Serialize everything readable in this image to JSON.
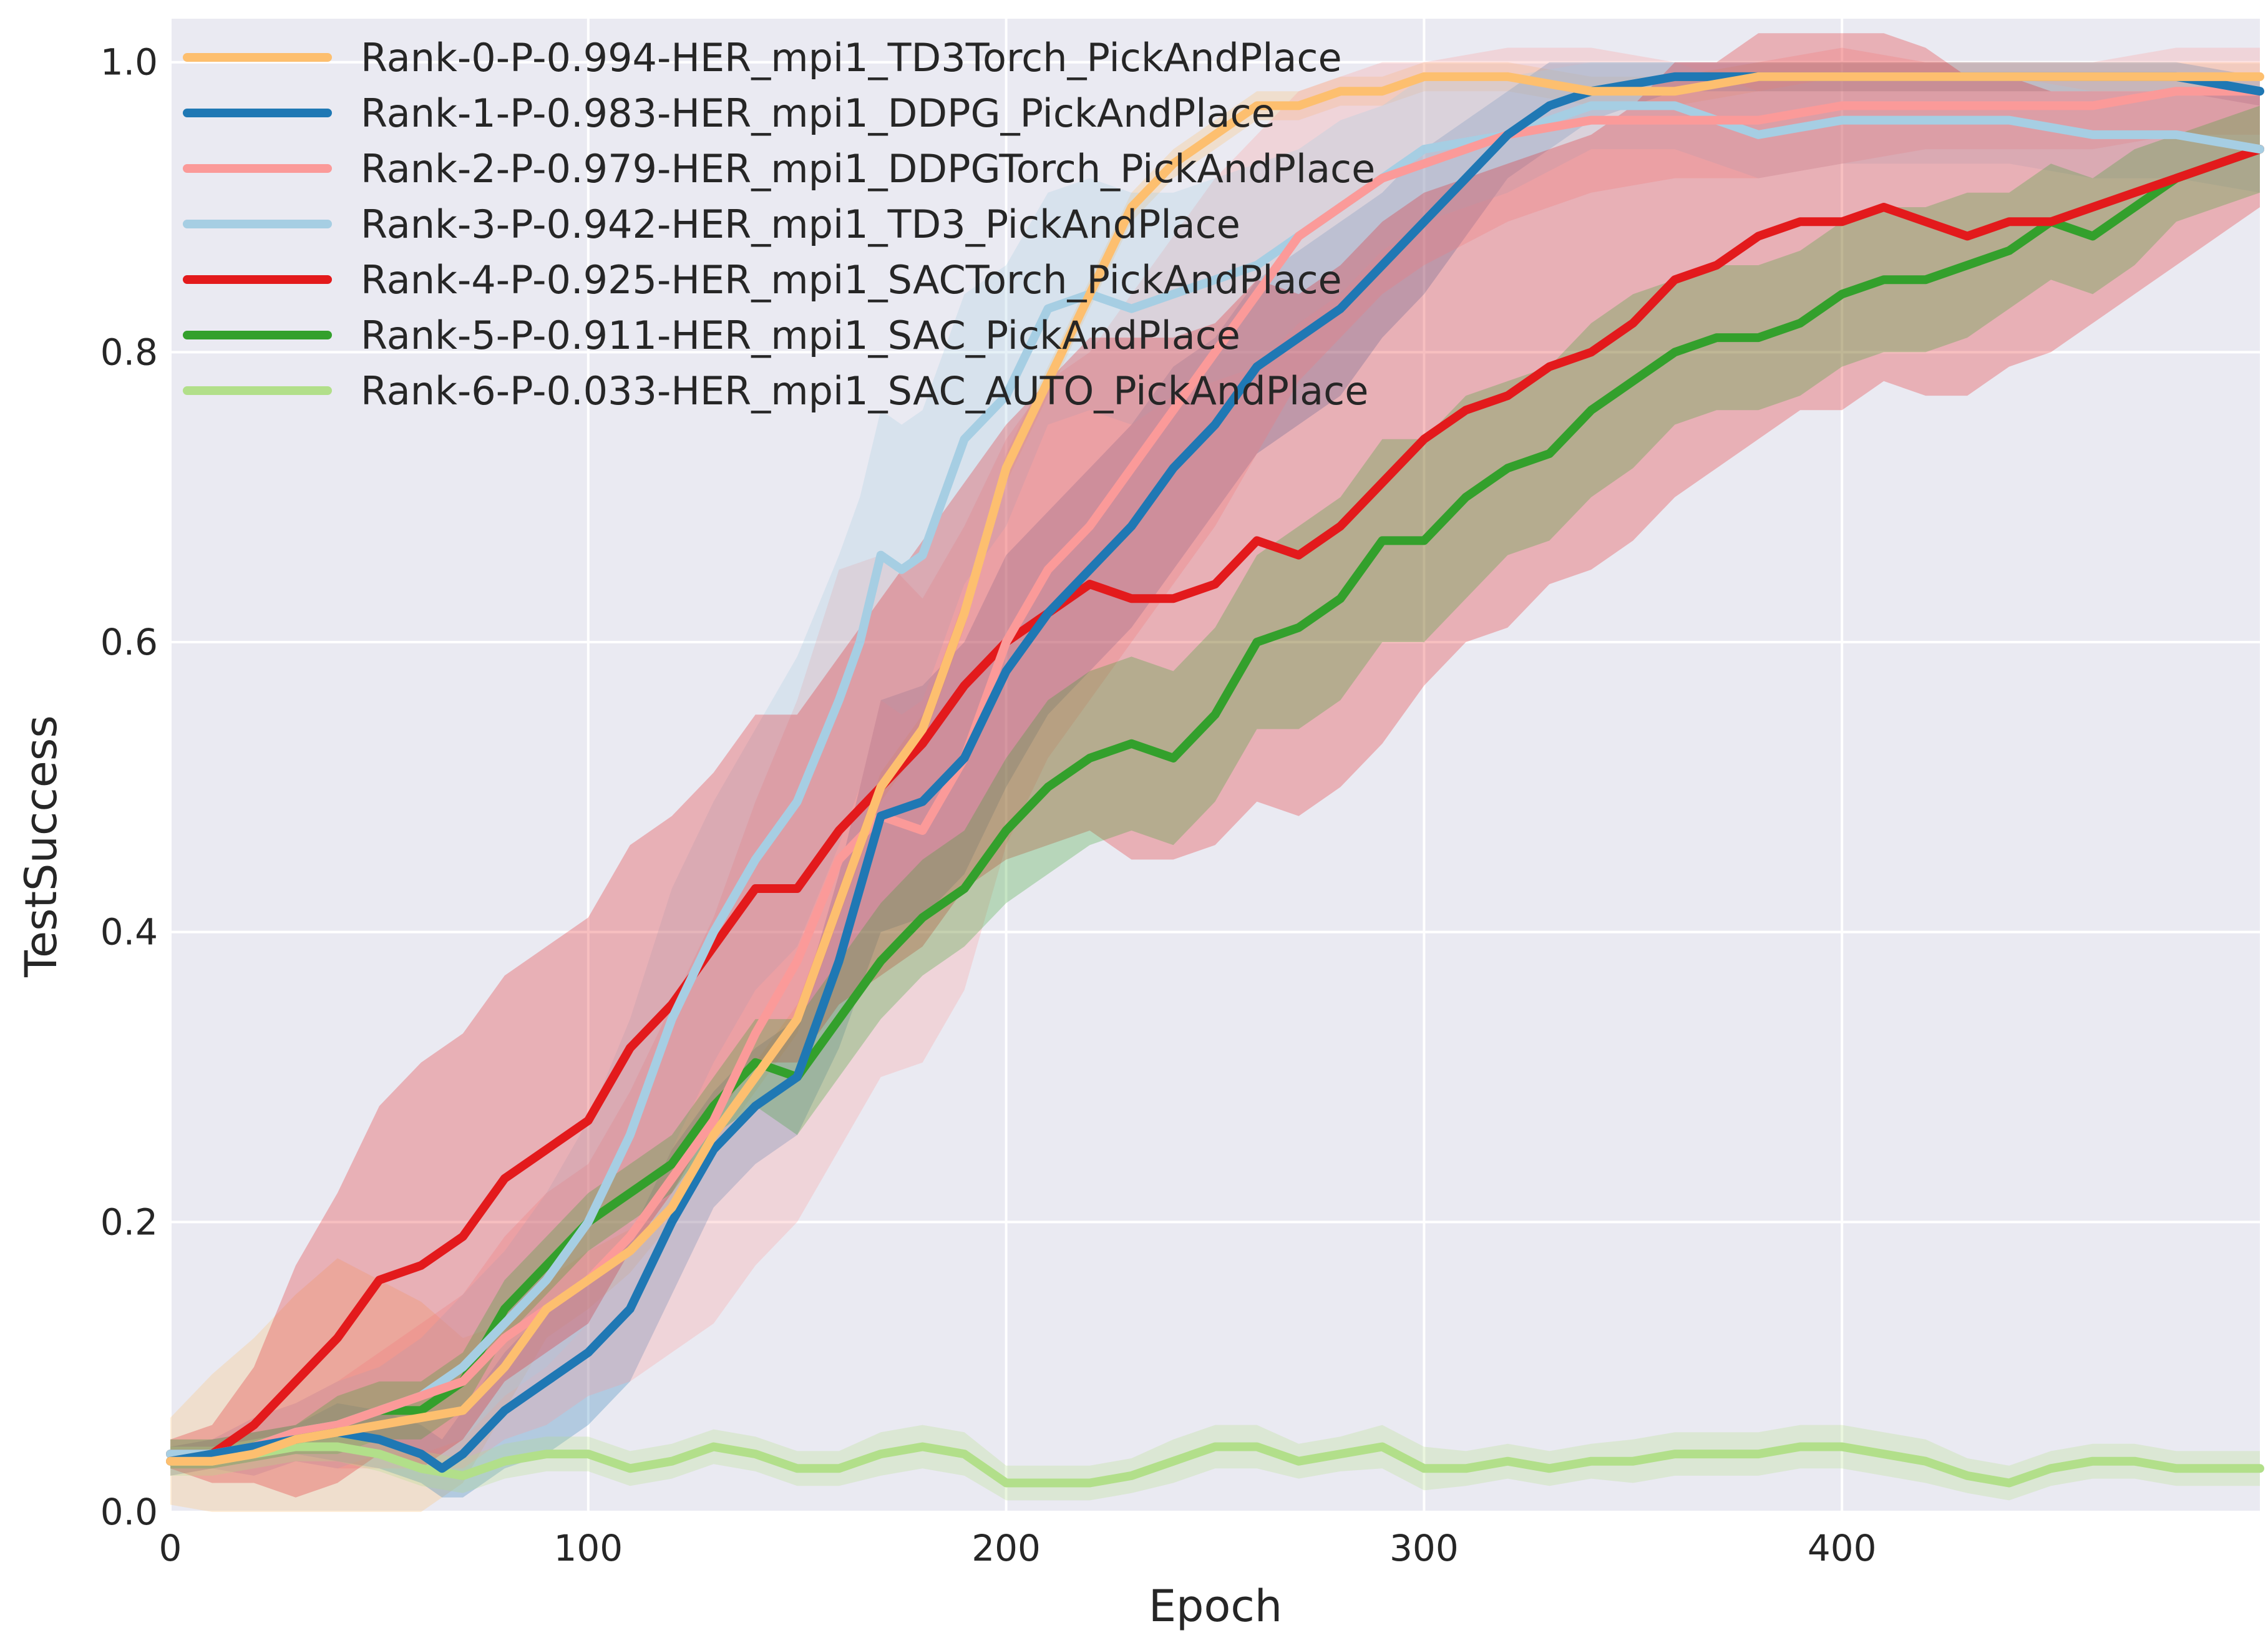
{
  "chart_data": {
    "type": "line",
    "title": "",
    "xlabel": "Epoch",
    "ylabel": "TestSuccess",
    "xlim": [
      0,
      500
    ],
    "ylim": [
      0,
      1.03
    ],
    "xticks": [
      0,
      100,
      200,
      300,
      400
    ],
    "yticks": [
      0.0,
      0.2,
      0.4,
      0.6,
      0.8,
      1.0
    ],
    "xtick_labels": [
      "0",
      "100",
      "200",
      "300",
      "400"
    ],
    "ytick_labels": [
      "0.0",
      "0.2",
      "0.4",
      "0.6",
      "0.8",
      "1.0"
    ],
    "grid": true,
    "legend_position": "top-left",
    "background": "#eaeaf2",
    "series": [
      {
        "name": "Rank-0-P-0.994-HER_mpi1_TD3Torch_PickAndPlace",
        "color": "#fdbf6f",
        "x": [
          0,
          10,
          20,
          30,
          40,
          50,
          60,
          70,
          80,
          90,
          100,
          110,
          120,
          130,
          140,
          150,
          160,
          170,
          180,
          190,
          200,
          210,
          220,
          230,
          240,
          250,
          260,
          270,
          280,
          290,
          300,
          320,
          340,
          360,
          380,
          400,
          420,
          440,
          460,
          480,
          500
        ],
        "y": [
          0.035,
          0.035,
          0.04,
          0.05,
          0.055,
          0.06,
          0.065,
          0.07,
          0.1,
          0.14,
          0.16,
          0.18,
          0.21,
          0.26,
          0.3,
          0.34,
          0.42,
          0.5,
          0.54,
          0.62,
          0.72,
          0.78,
          0.84,
          0.9,
          0.93,
          0.95,
          0.97,
          0.97,
          0.98,
          0.98,
          0.99,
          0.99,
          0.98,
          0.98,
          0.99,
          0.99,
          0.99,
          0.99,
          0.99,
          0.99,
          0.99
        ],
        "band": [
          0.03,
          0.06,
          0.08,
          0.1,
          0.12,
          0.1,
          0.08,
          0.05,
          0.03,
          0.02,
          0.02,
          0.015,
          0.01,
          0.01,
          0.01,
          0.01,
          0.01,
          0.01,
          0.01,
          0.01,
          0.01,
          0.01,
          0.01,
          0.01,
          0.01,
          0.01,
          0.01,
          0.01,
          0.01,
          0.01,
          0.01,
          0.01,
          0.01,
          0.01,
          0.01,
          0.01,
          0.01,
          0.01,
          0.01,
          0.01,
          0.01
        ]
      },
      {
        "name": "Rank-1-P-0.983-HER_mpi1_DDPG_PickAndPlace",
        "color": "#1f78b4",
        "x": [
          0,
          10,
          20,
          30,
          40,
          50,
          60,
          65,
          70,
          80,
          90,
          100,
          110,
          120,
          130,
          140,
          150,
          160,
          170,
          180,
          190,
          200,
          210,
          220,
          230,
          240,
          250,
          260,
          270,
          280,
          290,
          300,
          310,
          320,
          330,
          340,
          360,
          380,
          400,
          420,
          440,
          460,
          480,
          500
        ],
        "y": [
          0.035,
          0.04,
          0.045,
          0.05,
          0.055,
          0.05,
          0.04,
          0.03,
          0.04,
          0.07,
          0.09,
          0.11,
          0.14,
          0.2,
          0.25,
          0.28,
          0.3,
          0.38,
          0.48,
          0.49,
          0.52,
          0.58,
          0.62,
          0.65,
          0.68,
          0.72,
          0.75,
          0.79,
          0.81,
          0.83,
          0.86,
          0.89,
          0.92,
          0.95,
          0.97,
          0.98,
          0.99,
          0.99,
          0.99,
          0.99,
          0.99,
          0.99,
          0.99,
          0.98
        ],
        "band": [
          0.01,
          0.01,
          0.01,
          0.01,
          0.02,
          0.02,
          0.02,
          0.02,
          0.03,
          0.04,
          0.05,
          0.05,
          0.05,
          0.05,
          0.04,
          0.04,
          0.04,
          0.06,
          0.08,
          0.08,
          0.08,
          0.08,
          0.07,
          0.07,
          0.07,
          0.07,
          0.06,
          0.06,
          0.06,
          0.06,
          0.05,
          0.05,
          0.04,
          0.03,
          0.03,
          0.02,
          0.01,
          0.01,
          0.01,
          0.01,
          0.01,
          0.01,
          0.01,
          0.01
        ]
      },
      {
        "name": "Rank-2-P-0.979-HER_mpi1_DDPGTorch_PickAndPlace",
        "color": "#fb9a99",
        "x": [
          0,
          10,
          20,
          30,
          40,
          50,
          60,
          70,
          80,
          90,
          100,
          110,
          120,
          130,
          140,
          150,
          160,
          170,
          180,
          190,
          200,
          210,
          220,
          230,
          240,
          250,
          260,
          270,
          280,
          290,
          300,
          320,
          340,
          360,
          380,
          400,
          420,
          440,
          460,
          480,
          500
        ],
        "y": [
          0.035,
          0.04,
          0.045,
          0.055,
          0.06,
          0.07,
          0.08,
          0.09,
          0.12,
          0.14,
          0.16,
          0.19,
          0.23,
          0.27,
          0.33,
          0.38,
          0.45,
          0.48,
          0.47,
          0.52,
          0.6,
          0.65,
          0.68,
          0.72,
          0.76,
          0.8,
          0.84,
          0.88,
          0.9,
          0.92,
          0.93,
          0.95,
          0.96,
          0.96,
          0.96,
          0.97,
          0.97,
          0.97,
          0.97,
          0.98,
          0.98
        ],
        "band": [
          0.01,
          0.01,
          0.02,
          0.02,
          0.03,
          0.04,
          0.05,
          0.06,
          0.07,
          0.08,
          0.08,
          0.1,
          0.12,
          0.14,
          0.16,
          0.18,
          0.2,
          0.18,
          0.16,
          0.16,
          0.14,
          0.13,
          0.12,
          0.12,
          0.12,
          0.12,
          0.11,
          0.1,
          0.09,
          0.08,
          0.07,
          0.06,
          0.05,
          0.04,
          0.04,
          0.04,
          0.03,
          0.03,
          0.03,
          0.03,
          0.03
        ]
      },
      {
        "name": "Rank-3-P-0.942-HER_mpi1_TD3_PickAndPlace",
        "color": "#a6cee3",
        "x": [
          0,
          10,
          20,
          30,
          40,
          50,
          60,
          70,
          80,
          90,
          100,
          110,
          120,
          130,
          140,
          150,
          160,
          165,
          170,
          175,
          180,
          190,
          200,
          210,
          220,
          230,
          240,
          250,
          260,
          270,
          280,
          290,
          300,
          320,
          340,
          360,
          380,
          400,
          420,
          440,
          460,
          480,
          500
        ],
        "y": [
          0.04,
          0.04,
          0.045,
          0.055,
          0.06,
          0.07,
          0.08,
          0.1,
          0.13,
          0.16,
          0.2,
          0.26,
          0.34,
          0.4,
          0.45,
          0.49,
          0.56,
          0.6,
          0.66,
          0.65,
          0.66,
          0.74,
          0.77,
          0.83,
          0.84,
          0.83,
          0.84,
          0.85,
          0.86,
          0.88,
          0.9,
          0.92,
          0.94,
          0.95,
          0.97,
          0.97,
          0.95,
          0.96,
          0.96,
          0.96,
          0.95,
          0.95,
          0.94
        ],
        "band": [
          0.01,
          0.01,
          0.02,
          0.02,
          0.03,
          0.03,
          0.04,
          0.05,
          0.05,
          0.06,
          0.07,
          0.08,
          0.09,
          0.09,
          0.09,
          0.1,
          0.1,
          0.1,
          0.1,
          0.1,
          0.1,
          0.1,
          0.09,
          0.08,
          0.08,
          0.08,
          0.07,
          0.07,
          0.07,
          0.06,
          0.06,
          0.05,
          0.05,
          0.04,
          0.03,
          0.03,
          0.03,
          0.03,
          0.03,
          0.03,
          0.03,
          0.03,
          0.03
        ]
      },
      {
        "name": "Rank-4-P-0.925-HER_mpi1_SACTorch_PickAndPlace",
        "color": "#e31a1c",
        "x": [
          0,
          10,
          20,
          30,
          40,
          50,
          60,
          70,
          80,
          90,
          100,
          110,
          120,
          130,
          140,
          150,
          160,
          170,
          180,
          190,
          200,
          210,
          220,
          230,
          240,
          250,
          260,
          270,
          280,
          290,
          300,
          310,
          320,
          330,
          340,
          350,
          360,
          370,
          380,
          390,
          400,
          410,
          420,
          430,
          440,
          450,
          460,
          470,
          480,
          490,
          500
        ],
        "y": [
          0.04,
          0.04,
          0.06,
          0.09,
          0.12,
          0.16,
          0.17,
          0.19,
          0.23,
          0.25,
          0.27,
          0.32,
          0.35,
          0.39,
          0.43,
          0.43,
          0.47,
          0.5,
          0.53,
          0.57,
          0.6,
          0.62,
          0.64,
          0.63,
          0.63,
          0.64,
          0.67,
          0.66,
          0.68,
          0.71,
          0.74,
          0.76,
          0.77,
          0.79,
          0.8,
          0.82,
          0.85,
          0.86,
          0.88,
          0.89,
          0.89,
          0.9,
          0.89,
          0.88,
          0.89,
          0.89,
          0.9,
          0.91,
          0.92,
          0.93,
          0.94
        ],
        "band": [
          0.01,
          0.02,
          0.04,
          0.08,
          0.1,
          0.12,
          0.14,
          0.14,
          0.14,
          0.14,
          0.14,
          0.14,
          0.13,
          0.12,
          0.12,
          0.12,
          0.12,
          0.13,
          0.14,
          0.14,
          0.15,
          0.16,
          0.17,
          0.18,
          0.18,
          0.18,
          0.18,
          0.18,
          0.18,
          0.18,
          0.17,
          0.16,
          0.16,
          0.15,
          0.15,
          0.15,
          0.15,
          0.14,
          0.14,
          0.13,
          0.13,
          0.12,
          0.12,
          0.11,
          0.1,
          0.09,
          0.08,
          0.07,
          0.06,
          0.05,
          0.04
        ]
      },
      {
        "name": "Rank-5-P-0.911-HER_mpi1_SAC_PickAndPlace",
        "color": "#33a02c",
        "x": [
          0,
          10,
          20,
          30,
          40,
          50,
          60,
          70,
          80,
          90,
          100,
          110,
          120,
          130,
          140,
          150,
          160,
          170,
          180,
          190,
          200,
          210,
          220,
          230,
          240,
          250,
          260,
          270,
          280,
          290,
          300,
          310,
          320,
          330,
          340,
          350,
          360,
          370,
          380,
          390,
          400,
          410,
          420,
          430,
          440,
          450,
          460,
          470,
          480,
          490,
          500
        ],
        "y": [
          0.04,
          0.04,
          0.045,
          0.05,
          0.06,
          0.07,
          0.07,
          0.09,
          0.14,
          0.17,
          0.2,
          0.22,
          0.24,
          0.28,
          0.31,
          0.3,
          0.34,
          0.38,
          0.41,
          0.43,
          0.47,
          0.5,
          0.52,
          0.53,
          0.52,
          0.55,
          0.6,
          0.61,
          0.63,
          0.67,
          0.67,
          0.7,
          0.72,
          0.73,
          0.76,
          0.78,
          0.8,
          0.81,
          0.81,
          0.82,
          0.84,
          0.85,
          0.85,
          0.86,
          0.87,
          0.89,
          0.88,
          0.9,
          0.92,
          0.93,
          0.94
        ],
        "band": [
          0.01,
          0.01,
          0.01,
          0.01,
          0.02,
          0.02,
          0.02,
          0.02,
          0.02,
          0.02,
          0.02,
          0.02,
          0.02,
          0.02,
          0.03,
          0.04,
          0.04,
          0.04,
          0.04,
          0.04,
          0.05,
          0.06,
          0.06,
          0.06,
          0.06,
          0.06,
          0.06,
          0.07,
          0.07,
          0.07,
          0.07,
          0.07,
          0.06,
          0.06,
          0.06,
          0.06,
          0.05,
          0.05,
          0.05,
          0.05,
          0.05,
          0.05,
          0.05,
          0.05,
          0.04,
          0.04,
          0.04,
          0.04,
          0.03,
          0.03,
          0.03
        ]
      },
      {
        "name": "Rank-6-P-0.033-HER_mpi1_SAC_AUTO_PickAndPlace",
        "color": "#b2df8a",
        "x": [
          0,
          10,
          20,
          30,
          40,
          50,
          60,
          70,
          80,
          90,
          100,
          110,
          120,
          130,
          140,
          150,
          160,
          170,
          180,
          190,
          200,
          210,
          220,
          230,
          240,
          250,
          260,
          270,
          280,
          290,
          300,
          310,
          320,
          330,
          340,
          350,
          360,
          370,
          380,
          390,
          400,
          410,
          420,
          430,
          440,
          450,
          460,
          470,
          480,
          490,
          500
        ],
        "y": [
          0.035,
          0.035,
          0.04,
          0.045,
          0.045,
          0.04,
          0.03,
          0.025,
          0.035,
          0.04,
          0.04,
          0.03,
          0.035,
          0.045,
          0.04,
          0.03,
          0.03,
          0.04,
          0.045,
          0.04,
          0.02,
          0.02,
          0.02,
          0.025,
          0.035,
          0.045,
          0.045,
          0.035,
          0.04,
          0.045,
          0.03,
          0.03,
          0.035,
          0.03,
          0.035,
          0.035,
          0.04,
          0.04,
          0.04,
          0.045,
          0.045,
          0.04,
          0.035,
          0.025,
          0.02,
          0.03,
          0.035,
          0.035,
          0.03,
          0.03,
          0.03
        ],
        "band": [
          0.01,
          0.01,
          0.01,
          0.01,
          0.01,
          0.012,
          0.012,
          0.012,
          0.012,
          0.012,
          0.012,
          0.012,
          0.012,
          0.012,
          0.012,
          0.012,
          0.012,
          0.015,
          0.015,
          0.015,
          0.012,
          0.012,
          0.012,
          0.012,
          0.015,
          0.015,
          0.015,
          0.012,
          0.012,
          0.015,
          0.015,
          0.012,
          0.012,
          0.012,
          0.012,
          0.015,
          0.015,
          0.015,
          0.015,
          0.015,
          0.015,
          0.015,
          0.015,
          0.012,
          0.012,
          0.012,
          0.012,
          0.012,
          0.012,
          0.012,
          0.012
        ]
      }
    ]
  }
}
